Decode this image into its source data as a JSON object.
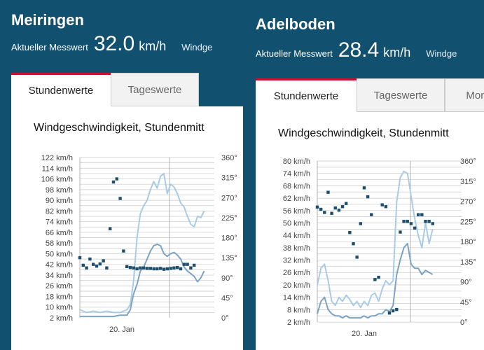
{
  "panels": [
    {
      "station": "Meiringen",
      "measure_label": "Aktueller Messwert",
      "measure_value": "32.0",
      "measure_unit": "km/h",
      "measure_extra": "Windge",
      "tabs": [
        {
          "label": "Stundenwerte",
          "active": true
        },
        {
          "label": "Tageswerte",
          "active": false
        }
      ],
      "chart_title": "Windgeschwindigkeit, Stundenmitt",
      "chart_data": {
        "type": "line",
        "title": "Windgeschwindigkeit, Stundenmitt",
        "y_left_ticks": [
          "2 km/h",
          "10 km/h",
          "18 km/h",
          "26 km/h",
          "34 km/h",
          "42 km/h",
          "50 km/h",
          "58 km/h",
          "66 km/h",
          "74 km/h",
          "82 km/h",
          "90 km/h",
          "98 km/h",
          "106 km/h",
          "114 km/h",
          "122 km/h"
        ],
        "y_right_ticks": [
          "0°",
          "45°",
          "90°",
          "135°",
          "180°",
          "225°",
          "270°",
          "315°",
          "360°"
        ],
        "x_ticks": [
          "20. Jan"
        ],
        "ylim": [
          2,
          122
        ],
        "y2lim": [
          0,
          360
        ],
        "x_range": [
          0,
          40
        ],
        "series": [
          {
            "kind": "gust",
            "color": "#a9cce6",
            "values": [
              [
                0,
                8
              ],
              [
                2,
                6
              ],
              [
                4,
                7
              ],
              [
                6,
                6
              ],
              [
                8,
                7
              ],
              [
                10,
                6
              ],
              [
                12,
                6
              ],
              [
                14,
                8
              ],
              [
                15,
                12
              ],
              [
                16,
                30
              ],
              [
                17,
                62
              ],
              [
                18,
                80
              ],
              [
                19,
                86
              ],
              [
                20,
                90
              ],
              [
                21,
                98
              ],
              [
                22,
                104
              ],
              [
                23,
                99
              ],
              [
                24,
                108
              ],
              [
                25,
                110
              ],
              [
                26,
                95
              ],
              [
                27,
                102
              ],
              [
                28,
                100
              ],
              [
                29,
                95
              ],
              [
                30,
                88
              ],
              [
                31,
                85
              ],
              [
                32,
                78
              ],
              [
                33,
                72
              ],
              [
                34,
                70
              ],
              [
                35,
                78
              ],
              [
                36,
                77
              ],
              [
                37,
                82
              ]
            ]
          },
          {
            "kind": "mean",
            "color": "#7ba3c6",
            "values": [
              [
                0,
                3
              ],
              [
                2,
                3
              ],
              [
                4,
                3
              ],
              [
                6,
                3
              ],
              [
                8,
                3
              ],
              [
                10,
                3
              ],
              [
                12,
                4
              ],
              [
                14,
                4
              ],
              [
                15,
                8
              ],
              [
                16,
                20
              ],
              [
                17,
                27
              ],
              [
                18,
                37
              ],
              [
                19,
                40
              ],
              [
                20,
                46
              ],
              [
                21,
                52
              ],
              [
                22,
                56
              ],
              [
                23,
                57
              ],
              [
                24,
                56
              ],
              [
                25,
                50
              ],
              [
                26,
                48
              ],
              [
                27,
                50
              ],
              [
                28,
                51
              ],
              [
                29,
                49
              ],
              [
                30,
                46
              ],
              [
                31,
                40
              ],
              [
                32,
                37
              ],
              [
                33,
                35
              ],
              [
                34,
                33
              ],
              [
                35,
                29
              ],
              [
                36,
                32
              ],
              [
                37,
                37
              ]
            ]
          },
          {
            "kind": "direction",
            "color": "#1d4e6e",
            "values": [
              [
                0,
                135
              ],
              [
                1,
                118
              ],
              [
                2,
                112
              ],
              [
                3,
                132
              ],
              [
                4,
                120
              ],
              [
                5,
                116
              ],
              [
                6,
                121
              ],
              [
                7,
                128
              ],
              [
                8,
                112
              ],
              [
                9,
                200
              ],
              [
                10,
                305
              ],
              [
                11,
                312
              ],
              [
                12,
                268
              ],
              [
                13,
                150
              ],
              [
                14,
                115
              ],
              [
                15,
                113
              ],
              [
                16,
                112
              ],
              [
                17,
                110
              ],
              [
                18,
                112
              ],
              [
                19,
                112
              ],
              [
                20,
                111
              ],
              [
                21,
                111
              ],
              [
                22,
                110
              ],
              [
                23,
                110
              ],
              [
                24,
                111
              ],
              [
                25,
                109
              ],
              [
                26,
                110
              ],
              [
                27,
                111
              ],
              [
                28,
                112
              ],
              [
                29,
                113
              ],
              [
                30,
                110
              ],
              [
                31,
                120
              ],
              [
                32,
                120
              ],
              [
                33,
                112
              ],
              [
                34,
                118
              ]
            ]
          }
        ]
      }
    },
    {
      "station": "Adelboden",
      "measure_label": "Aktueller Messwert",
      "measure_value": "28.4",
      "measure_unit": "km/h",
      "measure_extra": "Windge",
      "tabs": [
        {
          "label": "Stundenwerte",
          "active": true
        },
        {
          "label": "Tageswerte",
          "active": false
        },
        {
          "label": "Mon",
          "active": false
        }
      ],
      "chart_title": "Windgeschwindigkeit, Stundenmitt",
      "chart_data": {
        "type": "line",
        "title": "Windgeschwindigkeit, Stundenmitt",
        "y_left_ticks": [
          "2 km/h",
          "8 km/h",
          "14 km/h",
          "20 km/h",
          "26 km/h",
          "32 km/h",
          "38 km/h",
          "44 km/h",
          "50 km/h",
          "56 km/h",
          "62 km/h",
          "68 km/h",
          "74 km/h",
          "80 km/h"
        ],
        "y_right_ticks": [
          "0°",
          "45°",
          "90°",
          "135°",
          "180°",
          "225°",
          "270°",
          "315°",
          "360°"
        ],
        "x_ticks": [
          "20. Jan"
        ],
        "ylim": [
          2,
          80
        ],
        "y2lim": [
          0,
          360
        ],
        "x_range": [
          0,
          40
        ],
        "series": [
          {
            "kind": "gust",
            "color": "#a9cce6",
            "values": [
              [
                0,
                20
              ],
              [
                1,
                28
              ],
              [
                2,
                30
              ],
              [
                3,
                22
              ],
              [
                4,
                12
              ],
              [
                5,
                10
              ],
              [
                6,
                14
              ],
              [
                7,
                12
              ],
              [
                8,
                15
              ],
              [
                9,
                13
              ],
              [
                10,
                10
              ],
              [
                11,
                12
              ],
              [
                12,
                9
              ],
              [
                13,
                12
              ],
              [
                14,
                10
              ],
              [
                15,
                15
              ],
              [
                16,
                16
              ],
              [
                17,
                12
              ],
              [
                18,
                18
              ],
              [
                19,
                22
              ],
              [
                20,
                20
              ],
              [
                21,
                22
              ],
              [
                22,
                60
              ],
              [
                23,
                72
              ],
              [
                24,
                75
              ],
              [
                25,
                74
              ],
              [
                26,
                63
              ],
              [
                27,
                52
              ],
              [
                28,
                44
              ],
              [
                29,
                38
              ],
              [
                30,
                50
              ],
              [
                31,
                40
              ],
              [
                32,
                47
              ]
            ]
          },
          {
            "kind": "mean",
            "color": "#7ba3c6",
            "values": [
              [
                0,
                6
              ],
              [
                1,
                12
              ],
              [
                2,
                14
              ],
              [
                3,
                8
              ],
              [
                4,
                6
              ],
              [
                5,
                5
              ],
              [
                6,
                5
              ],
              [
                7,
                4
              ],
              [
                8,
                5
              ],
              [
                9,
                4
              ],
              [
                10,
                4
              ],
              [
                11,
                4
              ],
              [
                12,
                4
              ],
              [
                13,
                5
              ],
              [
                14,
                4
              ],
              [
                15,
                5
              ],
              [
                16,
                5
              ],
              [
                17,
                6
              ],
              [
                18,
                6
              ],
              [
                19,
                8
              ],
              [
                20,
                7
              ],
              [
                21,
                10
              ],
              [
                22,
                25
              ],
              [
                23,
                32
              ],
              [
                24,
                38
              ],
              [
                25,
                40
              ],
              [
                26,
                30
              ],
              [
                27,
                28
              ],
              [
                28,
                28
              ],
              [
                29,
                25
              ],
              [
                30,
                27
              ],
              [
                31,
                26
              ],
              [
                32,
                25
              ]
            ]
          },
          {
            "kind": "direction",
            "color": "#1d4e6e",
            "values": [
              [
                0,
                257
              ],
              [
                1,
                252
              ],
              [
                2,
                245
              ],
              [
                3,
                290
              ],
              [
                4,
                243
              ],
              [
                5,
                255
              ],
              [
                6,
                250
              ],
              [
                7,
                258
              ],
              [
                8,
                265
              ],
              [
                9,
                200
              ],
              [
                10,
                175
              ],
              [
                11,
                145
              ],
              [
                12,
                220
              ],
              [
                13,
                300
              ],
              [
                14,
                280
              ],
              [
                15,
                240
              ],
              [
                16,
                95
              ],
              [
                17,
                100
              ],
              [
                18,
                262
              ],
              [
                19,
                258
              ],
              [
                20,
                20
              ],
              [
                21,
                25
              ],
              [
                22,
                28
              ],
              [
                23,
                201
              ],
              [
                24,
                225
              ],
              [
                25,
                225
              ],
              [
                26,
                220
              ],
              [
                27,
                210
              ],
              [
                28,
                240
              ],
              [
                29,
                240
              ],
              [
                30,
                225
              ],
              [
                31,
                225
              ],
              [
                32,
                220
              ]
            ]
          }
        ]
      }
    }
  ]
}
